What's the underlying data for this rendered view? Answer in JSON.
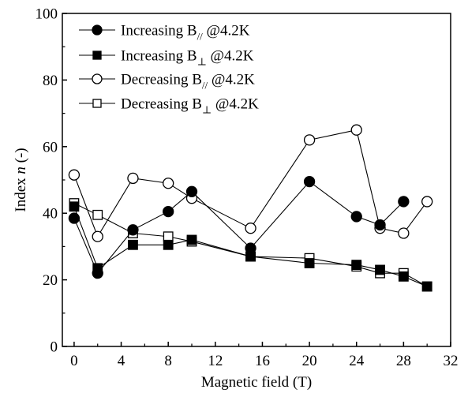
{
  "chart_data": {
    "type": "line",
    "xlabel": "Magnetic field (T)",
    "ylabel": "Index n (-)",
    "ylabel_prefix": "Index ",
    "ylabel_var": "n",
    "ylabel_suffix": " (-)",
    "xlim": [
      -1,
      32
    ],
    "ylim": [
      0,
      100
    ],
    "xticks": [
      0,
      4,
      8,
      12,
      16,
      20,
      24,
      28,
      32
    ],
    "yticks": [
      0,
      20,
      40,
      60,
      80,
      100
    ],
    "xtick_labels": [
      "0",
      "4",
      "8",
      "12",
      "16",
      "20",
      "24",
      "28",
      "32"
    ],
    "ytick_labels": [
      "0",
      "20",
      "40",
      "60",
      "80",
      "100"
    ],
    "grid": false,
    "legend_position": "top-left",
    "colors": {
      "line": "#000000",
      "filled_marker": "#000000",
      "open_marker_fill": "#ffffff"
    },
    "series": [
      {
        "name": "Increasing B// @4.2K",
        "legend_main": "Increasing B",
        "legend_sub": "//",
        "legend_tail": " @4.2K",
        "marker": "circle",
        "filled": true,
        "x": [
          0,
          2,
          5,
          8,
          10,
          15,
          20,
          24,
          26,
          28
        ],
        "y": [
          38.5,
          22,
          35,
          40.5,
          46.5,
          29.5,
          49.5,
          39,
          36.5,
          43.5
        ]
      },
      {
        "name": "Increasing B⊥ @4.2K",
        "legend_main": "Increasing B",
        "legend_sub": "⊥",
        "legend_tail": " @4.2K",
        "marker": "square",
        "filled": true,
        "x": [
          0,
          2,
          5,
          8,
          10,
          15,
          20,
          24,
          26,
          28,
          30
        ],
        "y": [
          42,
          23.5,
          30.5,
          30.5,
          32,
          27,
          25,
          24.5,
          23,
          21,
          18
        ]
      },
      {
        "name": "Decreasing B// @4.2K",
        "legend_main": "Decreasing B",
        "legend_sub": "//",
        "legend_tail": " @4.2K",
        "marker": "circle",
        "filled": false,
        "x": [
          0,
          2,
          5,
          8,
          10,
          15,
          20,
          24,
          26,
          28,
          30
        ],
        "y": [
          51.5,
          33,
          50.5,
          49,
          44.5,
          35.5,
          62,
          65,
          35.5,
          34,
          43.5
        ]
      },
      {
        "name": "Decreasing B⊥ @4.2K",
        "legend_main": "Decreasing B",
        "legend_sub": "⊥",
        "legend_tail": " @4.2K",
        "marker": "square",
        "filled": false,
        "x": [
          0,
          2,
          5,
          8,
          10,
          15,
          20,
          24,
          26,
          28,
          30
        ],
        "y": [
          43,
          39.5,
          34,
          33,
          31.5,
          27,
          26.5,
          24,
          22,
          22,
          18
        ]
      }
    ]
  }
}
